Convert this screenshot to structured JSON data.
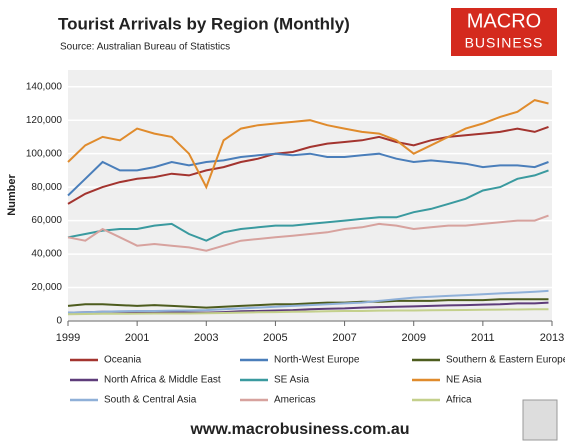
{
  "chart_data": {
    "type": "line",
    "title": "Tourist Arrivals by Region (Monthly)",
    "subtitle": "Source: Australian Bureau of Statistics",
    "y_label": "Number",
    "x": [
      1999,
      1999.5,
      2000,
      2000.5,
      2001,
      2001.5,
      2002,
      2002.5,
      2003,
      2003.5,
      2004,
      2004.5,
      2005,
      2005.5,
      2006,
      2006.5,
      2007,
      2007.5,
      2008,
      2008.5,
      2009,
      2009.5,
      2010,
      2010.5,
      2011,
      2011.5,
      2012,
      2012.5,
      2012.9
    ],
    "xlim": [
      1999,
      2013
    ],
    "xticks": [
      1999,
      2001,
      2003,
      2005,
      2007,
      2009,
      2011,
      2013
    ],
    "ylim": [
      0,
      150000
    ],
    "yticks": [
      0,
      {
        "value": 20000,
        "label": "20,000"
      },
      {
        "value": 40000,
        "label": "40,000"
      },
      {
        "value": 60000,
        "label": "60,000"
      },
      {
        "value": 80000,
        "label": "80,000"
      },
      {
        "value": 100000,
        "label": "100,000"
      },
      {
        "value": 120000,
        "label": "120,000"
      },
      {
        "value": 140000,
        "label": "140,000"
      }
    ],
    "grid": true,
    "series": [
      {
        "name": "Oceania",
        "color": "#a3342f",
        "values": [
          70000,
          76000,
          80000,
          83000,
          85000,
          86000,
          88000,
          87000,
          90000,
          92000,
          95000,
          97000,
          100000,
          101000,
          104000,
          106000,
          107000,
          108000,
          110000,
          107000,
          105000,
          108000,
          110000,
          111000,
          112000,
          113000,
          115000,
          113000,
          116000
        ]
      },
      {
        "name": "North-West Europe",
        "color": "#4a7eba",
        "values": [
          75000,
          85000,
          95000,
          90000,
          90000,
          92000,
          95000,
          93000,
          95000,
          96000,
          98000,
          99000,
          100000,
          99000,
          100000,
          98000,
          98000,
          99000,
          100000,
          97000,
          95000,
          96000,
          95000,
          94000,
          92000,
          93000,
          93000,
          92000,
          95000
        ]
      },
      {
        "name": "Southern & Eastern Europe",
        "color": "#4d5c1e",
        "values": [
          9000,
          10000,
          10000,
          9500,
          9000,
          9500,
          9000,
          8500,
          8000,
          8500,
          9000,
          9500,
          10000,
          10000,
          10500,
          11000,
          11000,
          11500,
          11500,
          12000,
          12000,
          12000,
          12500,
          12500,
          12500,
          13000,
          13000,
          13000,
          13000
        ]
      },
      {
        "name": "North Africa & Middle East",
        "color": "#5e3c7a",
        "values": [
          5000,
          5200,
          5500,
          5500,
          5400,
          5300,
          5200,
          5000,
          5000,
          5300,
          5800,
          6000,
          6300,
          6500,
          7000,
          7300,
          7500,
          8000,
          8300,
          8500,
          8700,
          9000,
          9300,
          9500,
          9800,
          10000,
          10500,
          10500,
          11000
        ]
      },
      {
        "name": "SE Asia",
        "color": "#3a9a9f",
        "values": [
          50000,
          52000,
          54000,
          55000,
          55000,
          57000,
          58000,
          52000,
          48000,
          53000,
          55000,
          56000,
          57000,
          57000,
          58000,
          59000,
          60000,
          61000,
          62000,
          62000,
          65000,
          67000,
          70000,
          73000,
          78000,
          80000,
          85000,
          87000,
          90000
        ]
      },
      {
        "name": "NE Asia",
        "color": "#e08b2c",
        "values": [
          95000,
          105000,
          110000,
          108000,
          115000,
          112000,
          110000,
          100000,
          80000,
          108000,
          115000,
          117000,
          118000,
          119000,
          120000,
          117000,
          115000,
          113000,
          112000,
          108000,
          100000,
          105000,
          110000,
          115000,
          118000,
          122000,
          125000,
          132000,
          130000
        ]
      },
      {
        "name": "South & Central Asia",
        "color": "#8fb0d8",
        "values": [
          5000,
          5200,
          5500,
          5800,
          6000,
          6000,
          6200,
          6300,
          6500,
          7000,
          7500,
          8000,
          8500,
          9000,
          9500,
          10000,
          10500,
          11000,
          12000,
          13000,
          14000,
          14500,
          15000,
          15500,
          16000,
          16500,
          17000,
          17500,
          18000
        ]
      },
      {
        "name": "Americas",
        "color": "#d7a29e",
        "values": [
          50000,
          48000,
          55000,
          50000,
          45000,
          46000,
          45000,
          44000,
          42000,
          45000,
          48000,
          49000,
          50000,
          51000,
          52000,
          53000,
          55000,
          56000,
          58000,
          57000,
          55000,
          56000,
          57000,
          57000,
          58000,
          59000,
          60000,
          60000,
          63000
        ]
      },
      {
        "name": "Africa",
        "color": "#c4d08c",
        "values": [
          4000,
          4200,
          4300,
          4300,
          4400,
          4500,
          4500,
          4500,
          4600,
          4800,
          5000,
          5200,
          5300,
          5500,
          5600,
          5800,
          6000,
          6000,
          6200,
          6300,
          6300,
          6400,
          6500,
          6600,
          6700,
          6800,
          6900,
          7000,
          7000
        ]
      }
    ],
    "legend": "bottom"
  },
  "logo": {
    "line1": "MACRO",
    "line2": "BUSINESS"
  },
  "footer": "www.macrobusiness.com.au"
}
